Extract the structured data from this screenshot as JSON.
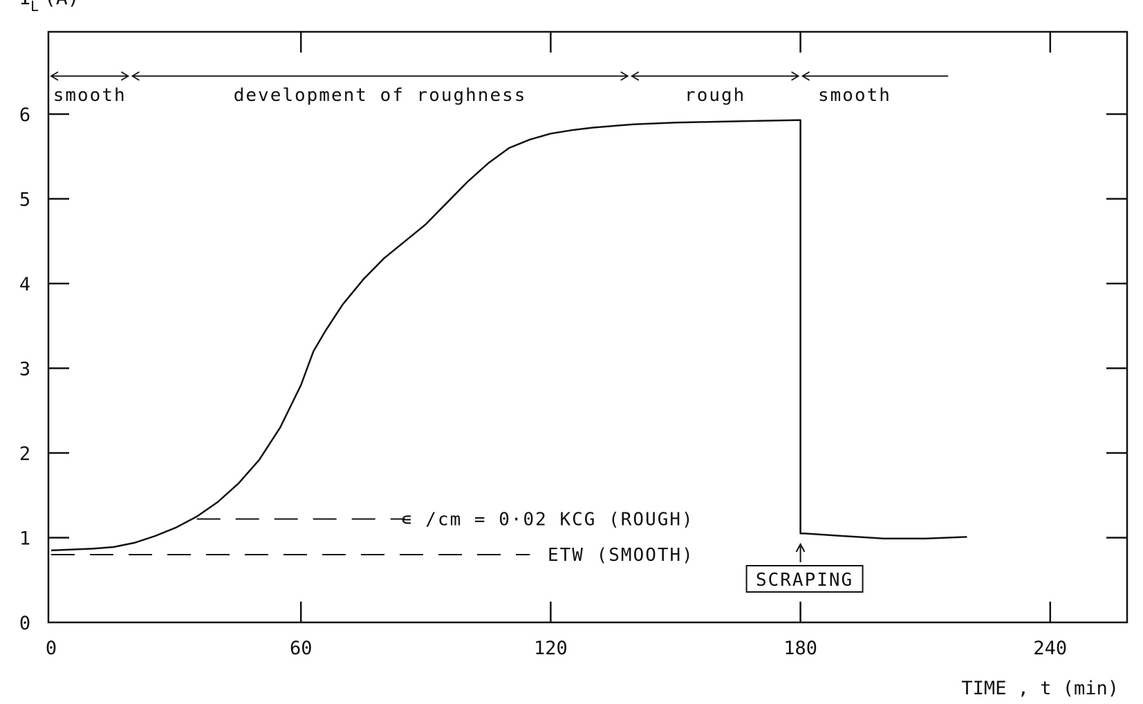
{
  "chart_data": {
    "type": "line",
    "ylabel_main": "I",
    "ylabel_sub": "L",
    "ylabel_unit": "(A)",
    "xlabel": "TIME , t (min)",
    "xlim": [
      0,
      260
    ],
    "ylim": [
      0,
      6.3
    ],
    "x_ticks": [
      {
        "value": 0,
        "label": "0"
      },
      {
        "value": 60,
        "label": "60"
      },
      {
        "value": 120,
        "label": "120"
      },
      {
        "value": 180,
        "label": "180"
      },
      {
        "value": 240,
        "label": "240"
      }
    ],
    "y_ticks": [
      {
        "value": 0,
        "label": "0"
      },
      {
        "value": 1,
        "label": "1"
      },
      {
        "value": 2,
        "label": "2"
      },
      {
        "value": 3,
        "label": "3"
      },
      {
        "value": 4,
        "label": "4"
      },
      {
        "value": 5,
        "label": "5"
      },
      {
        "value": 6,
        "label": "6"
      }
    ],
    "series": [
      {
        "x": [
          0,
          5,
          10,
          15,
          20,
          25,
          30,
          35,
          40,
          45,
          50,
          55,
          60,
          63,
          66,
          70,
          75,
          80,
          85,
          90,
          95,
          100,
          105,
          110,
          115,
          120,
          125,
          130,
          135,
          140,
          150,
          160,
          170,
          180,
          180,
          181,
          190,
          200,
          210,
          220
        ],
        "y": [
          0.85,
          0.86,
          0.87,
          0.89,
          0.94,
          1.02,
          1.12,
          1.25,
          1.42,
          1.64,
          1.92,
          2.3,
          2.8,
          3.2,
          3.45,
          3.75,
          4.05,
          4.3,
          4.5,
          4.7,
          4.95,
          5.2,
          5.42,
          5.6,
          5.7,
          5.77,
          5.81,
          5.84,
          5.86,
          5.88,
          5.9,
          5.91,
          5.92,
          5.93,
          1.05,
          1.05,
          1.02,
          0.99,
          0.99,
          1.01
        ]
      }
    ],
    "reference_lines": [
      {
        "y": 1.22,
        "x_start": 35,
        "x_end": 85,
        "label": "∊ /cm = 0·02 KCG (ROUGH)"
      },
      {
        "y": 0.8,
        "x_start": 0,
        "x_end": 115,
        "label": "ETW (SMOOTH)"
      }
    ],
    "regions": [
      {
        "x_start": 0,
        "x_end": 19,
        "label": "smooth"
      },
      {
        "x_start": 19,
        "x_end": 139,
        "label": "development of roughness"
      },
      {
        "x_start": 139,
        "x_end": 180,
        "label": "rough"
      },
      {
        "x_start": 180,
        "x_end": 216,
        "label": "smooth"
      }
    ],
    "annotations": [
      {
        "x": 180,
        "y": 1.0,
        "label": "SCRAPING"
      }
    ],
    "grid": false
  }
}
